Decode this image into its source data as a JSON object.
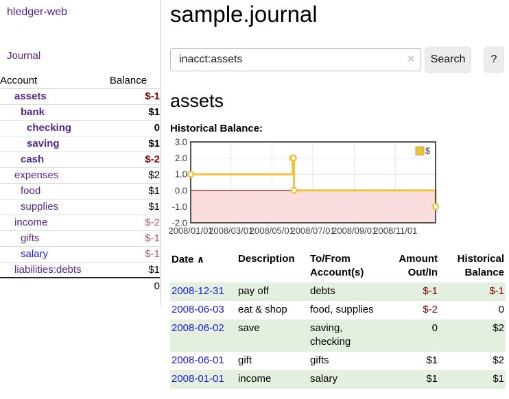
{
  "colors": {
    "link_purple": "#54278f",
    "link_blue": "#1b1be0",
    "negative_strong": "#800000",
    "negative_soft": "#a95c5c",
    "row_stripe_green": "#e3efdf"
  },
  "sidebar": {
    "brand": "hledger-web",
    "nav": {
      "journal": "Journal"
    },
    "accounts_table": {
      "col_account": "Account",
      "col_balance": "Balance",
      "rows": [
        {
          "name": "assets",
          "indent": 0,
          "bold": true,
          "balance": "$-1",
          "balance_class": "neg-strong",
          "name_class": ""
        },
        {
          "name": "bank",
          "indent": 1,
          "bold": true,
          "balance": "$1",
          "balance_class": "",
          "name_class": ""
        },
        {
          "name": "checking",
          "indent": 2,
          "bold": true,
          "balance": "0",
          "balance_class": "",
          "name_class": ""
        },
        {
          "name": "saving",
          "indent": 2,
          "bold": true,
          "balance": "$1",
          "balance_class": "",
          "name_class": ""
        },
        {
          "name": "cash",
          "indent": 1,
          "bold": true,
          "balance": "$-2",
          "balance_class": "neg-strong",
          "name_class": ""
        },
        {
          "name": "expenses",
          "indent": 0,
          "bold": false,
          "balance": "$2",
          "balance_class": "",
          "name_class": ""
        },
        {
          "name": "food",
          "indent": 1,
          "bold": false,
          "balance": "$1",
          "balance_class": "",
          "name_class": ""
        },
        {
          "name": "supplies",
          "indent": 1,
          "bold": false,
          "balance": "$1",
          "balance_class": "",
          "name_class": ""
        },
        {
          "name": "income",
          "indent": 0,
          "bold": false,
          "balance": "$-2",
          "balance_class": "neg-soft",
          "name_class": ""
        },
        {
          "name": "gifts",
          "indent": 1,
          "bold": false,
          "balance": "$-1",
          "balance_class": "neg-soft",
          "name_class": ""
        },
        {
          "name": "salary",
          "indent": 1,
          "bold": false,
          "balance": "$-1",
          "balance_class": "neg-soft",
          "name_class": "blue"
        },
        {
          "name": "liabilities:debts",
          "indent": 0,
          "bold": false,
          "balance": "$1",
          "balance_class": "",
          "name_class": ""
        }
      ],
      "total": "0"
    }
  },
  "main": {
    "title": "sample.journal",
    "search": {
      "value": "inacct:assets",
      "clear_icon": "×",
      "search_button": "Search",
      "help_button": "?"
    },
    "account_heading": "assets",
    "chart_title": "Historical Balance:"
  },
  "chart_data": {
    "type": "line",
    "step": true,
    "title": "Historical Balance",
    "series": [
      {
        "name": "$",
        "color": "#EDC240",
        "points": [
          [
            "2008-01-01",
            1
          ],
          [
            "2008-06-01",
            2
          ],
          [
            "2008-06-02",
            2
          ],
          [
            "2008-06-03",
            0
          ],
          [
            "2008-12-31",
            -1
          ]
        ]
      }
    ],
    "xlim": [
      "2008-01-01",
      "2008-12-31"
    ],
    "ylim": [
      -2,
      3
    ],
    "x_ticks": [
      {
        "date": "2008-01-01",
        "label": "2008/01/01"
      },
      {
        "date": "2008-03-01",
        "label": "2008/03/01"
      },
      {
        "date": "2008-05-01",
        "label": "2008/05/01"
      },
      {
        "date": "2008-07-01",
        "label": "2008/07/01"
      },
      {
        "date": "2008-09-01",
        "label": "2008/09/01"
      },
      {
        "date": "2008-11-01",
        "label": "2008/11/01"
      }
    ],
    "y_ticks": [
      {
        "value": 3,
        "label": "3.0"
      },
      {
        "value": 2,
        "label": "2.0"
      },
      {
        "value": 1,
        "label": "1.0"
      },
      {
        "value": 0,
        "label": "0.0"
      },
      {
        "value": -1,
        "label": "-1.0"
      },
      {
        "value": -2,
        "label": "-2.0"
      }
    ],
    "grid": true,
    "grid_color": "#e6e6e6",
    "border_color": "#545454",
    "zero_line_color": "#8b0000",
    "negative_region_color": "#fbdddd",
    "legend": {
      "label": "$",
      "position": "top-right",
      "swatch_color": "#EDC240",
      "swatch_border": "#c9a22e"
    }
  },
  "register": {
    "headers": {
      "date": "Date",
      "sort_icon": "∧",
      "description": "Description",
      "tofrom_line1": "To/From",
      "tofrom_line2": "Account(s)",
      "amount_line1": "Amount",
      "amount_line2": "Out/In",
      "balance_line1": "Historical",
      "balance_line2": "Balance"
    },
    "rows": [
      {
        "date": "2008-12-31",
        "description": "pay off",
        "accounts": "debts",
        "amount": "$-1",
        "amount_class": "neg",
        "balance": "$-1",
        "balance_class": "neg"
      },
      {
        "date": "2008-06-03",
        "description": "eat & shop",
        "accounts": "food, supplies",
        "amount": "$-2",
        "amount_class": "neg",
        "balance": "0",
        "balance_class": ""
      },
      {
        "date": "2008-06-02",
        "description": "save",
        "accounts": "saving, checking",
        "amount": "0",
        "amount_class": "",
        "balance": "$2",
        "balance_class": ""
      },
      {
        "date": "2008-06-01",
        "description": "gift",
        "accounts": "gifts",
        "amount": "$1",
        "amount_class": "",
        "balance": "$2",
        "balance_class": ""
      },
      {
        "date": "2008-01-01",
        "description": "income",
        "accounts": "salary",
        "amount": "$1",
        "amount_class": "",
        "balance": "$1",
        "balance_class": ""
      }
    ]
  }
}
